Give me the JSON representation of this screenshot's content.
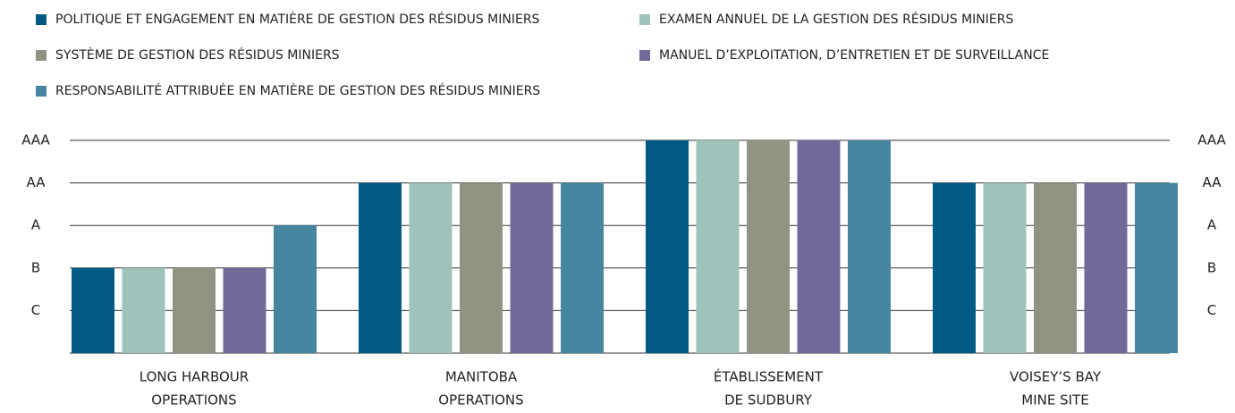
{
  "chart_data": {
    "type": "bar",
    "categories": [
      [
        "LONG HARBOUR",
        "OPERATIONS"
      ],
      [
        "MANITOBA",
        "OPERATIONS"
      ],
      [
        "ÉTABLISSEMENT",
        "DE SUDBURY"
      ],
      [
        "VOISEY’S BAY",
        "MINE SITE"
      ]
    ],
    "series": [
      {
        "name": "POLITIQUE ET ENGAGEMENT EN MATIÈRE DE GESTION DES RÉSIDUS MINIERS",
        "color": "#005a84",
        "values": [
          2,
          4,
          5,
          4
        ]
      },
      {
        "name": "EXAMEN ANNUEL DE LA GESTION DES RÉSIDUS MINIERS",
        "color": "#9dc3bb",
        "values": [
          2,
          4,
          5,
          4
        ]
      },
      {
        "name": "SYSTÈME DE GESTION DES RÉSIDUS MINIERS",
        "color": "#929282",
        "values": [
          2,
          4,
          5,
          4
        ]
      },
      {
        "name": "MANUEL D’EXPLOITATION, D’ENTRETIEN ET DE SURVEILLANCE",
        "color": "#72689a",
        "values": [
          2,
          4,
          5,
          4
        ]
      },
      {
        "name": "RESPONSABILITÉ ATTRIBUÉE EN MATIÈRE DE GESTION DES RÉSIDUS MINIERS",
        "color": "#4585a0",
        "values": [
          3,
          4,
          5,
          4
        ]
      }
    ],
    "ylim": [
      0,
      5
    ],
    "yticks": [
      {
        "value": 1,
        "label": "C"
      },
      {
        "value": 2,
        "label": "B"
      },
      {
        "value": 3,
        "label": "A"
      },
      {
        "value": 4,
        "label": "AA"
      },
      {
        "value": 5,
        "label": "AAA"
      }
    ],
    "grid": true
  }
}
